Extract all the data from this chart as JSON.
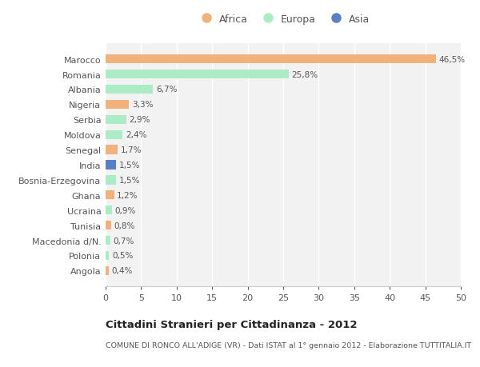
{
  "countries": [
    "Marocco",
    "Romania",
    "Albania",
    "Nigeria",
    "Serbia",
    "Moldova",
    "Senegal",
    "India",
    "Bosnia-Erzegovina",
    "Ghana",
    "Ucraina",
    "Tunisia",
    "Macedonia d/N.",
    "Polonia",
    "Angola"
  ],
  "values": [
    46.5,
    25.8,
    6.7,
    3.3,
    2.9,
    2.4,
    1.7,
    1.5,
    1.5,
    1.2,
    0.9,
    0.8,
    0.7,
    0.5,
    0.4
  ],
  "labels": [
    "46,5%",
    "25,8%",
    "6,7%",
    "3,3%",
    "2,9%",
    "2,4%",
    "1,7%",
    "1,5%",
    "1,5%",
    "1,2%",
    "0,9%",
    "0,8%",
    "0,7%",
    "0,5%",
    "0,4%"
  ],
  "continents": [
    "Africa",
    "Europa",
    "Europa",
    "Africa",
    "Europa",
    "Europa",
    "Africa",
    "Asia",
    "Europa",
    "Africa",
    "Europa",
    "Africa",
    "Europa",
    "Europa",
    "Africa"
  ],
  "colors": {
    "Africa": "#F0B27A",
    "Europa": "#ABEBC6",
    "Asia": "#5B7FC5"
  },
  "title_main": "Cittadini Stranieri per Cittadinanza - 2012",
  "title_sub": "COMUNE DI RONCO ALL'ADIGE (VR) - Dati ISTAT al 1° gennaio 2012 - Elaborazione TUTTITALIA.IT",
  "xlim": [
    0,
    50
  ],
  "xticks": [
    0,
    5,
    10,
    15,
    20,
    25,
    30,
    35,
    40,
    45,
    50
  ],
  "bg_color": "#FFFFFF",
  "plot_bg_color": "#F2F2F2",
  "grid_color": "#FFFFFF",
  "bar_height": 0.6
}
